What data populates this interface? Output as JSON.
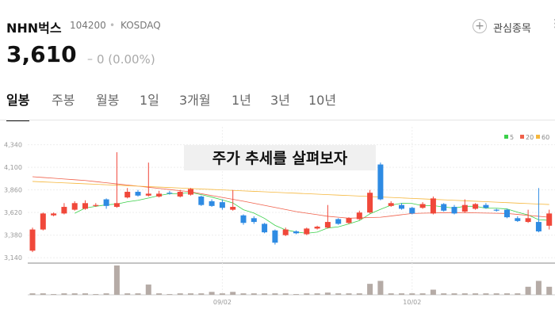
{
  "header": {
    "name": "NHN벅스",
    "code": "104200",
    "market": "KOSDAQ",
    "watch_label": "관심종목",
    "price": "3,610",
    "change": "0 (0.00%)"
  },
  "tabs": [
    "일봉",
    "주봉",
    "월봉",
    "1일",
    "3개월",
    "1년",
    "3년",
    "10년"
  ],
  "active_tab": 0,
  "chart_data": {
    "type": "candlestick",
    "annotation": "주가 추세를 살펴보자",
    "categories": [
      null,
      null,
      null,
      null,
      null,
      null,
      null,
      null,
      null,
      null,
      null,
      null,
      null,
      null,
      null,
      null,
      null,
      null,
      "09/02",
      null,
      null,
      null,
      null,
      null,
      null,
      null,
      null,
      null,
      null,
      null,
      null,
      null,
      null,
      null,
      null,
      null,
      "10/02",
      null,
      null,
      null,
      null,
      null,
      null,
      null,
      null,
      null,
      null,
      null,
      null,
      null
    ],
    "open": [
      3215,
      3440,
      3590,
      3610,
      3650,
      3660,
      3690,
      3760,
      3680,
      3780,
      3840,
      3800,
      3790,
      3830,
      3790,
      3810,
      3790,
      3740,
      3730,
      3650,
      3590,
      3560,
      3500,
      3430,
      3380,
      3420,
      3390,
      3450,
      3460,
      3550,
      3510,
      3550,
      3620,
      4130,
      3690,
      3700,
      3670,
      3670,
      3610,
      3710,
      3680,
      3630,
      3660,
      3700,
      3650,
      3650,
      3560,
      3520,
      3520,
      3480
    ],
    "high": [
      3460,
      3620,
      3620,
      3720,
      3740,
      3750,
      3720,
      3770,
      4260,
      3880,
      3860,
      4150,
      3850,
      3850,
      3860,
      3880,
      3800,
      3760,
      3760,
      3860,
      3600,
      3580,
      3510,
      3440,
      3460,
      3430,
      3460,
      3480,
      3700,
      3560,
      3570,
      3640,
      3860,
      4150,
      3740,
      3720,
      3680,
      3730,
      3790,
      3720,
      3700,
      3760,
      3720,
      3720,
      3660,
      3660,
      3580,
      3650,
      3880,
      3650
    ],
    "low": [
      3200,
      3430,
      3580,
      3600,
      3640,
      3650,
      3680,
      3660,
      3670,
      3770,
      3790,
      3790,
      3780,
      3810,
      3780,
      3800,
      3690,
      3680,
      3650,
      3640,
      3490,
      3500,
      3400,
      3280,
      3370,
      3390,
      3380,
      3440,
      3450,
      3490,
      3500,
      3540,
      3610,
      3750,
      3680,
      3650,
      3600,
      3660,
      3600,
      3630,
      3600,
      3620,
      3650,
      3660,
      3630,
      3560,
      3520,
      3510,
      3410,
      3440
    ],
    "close": [
      3440,
      3610,
      3610,
      3680,
      3720,
      3720,
      3700,
      3690,
      3720,
      3840,
      3800,
      3820,
      3820,
      3820,
      3840,
      3870,
      3700,
      3690,
      3670,
      3680,
      3510,
      3520,
      3410,
      3300,
      3440,
      3400,
      3450,
      3470,
      3520,
      3500,
      3560,
      3620,
      3830,
      3760,
      3720,
      3660,
      3610,
      3710,
      3770,
      3640,
      3610,
      3700,
      3710,
      3670,
      3640,
      3570,
      3530,
      3560,
      3420,
      3610
    ],
    "up_color": "#f0483a",
    "down_color": "#2e8be3",
    "ylim": [
      3100,
      4530
    ],
    "yticks": [
      {
        "value": 3140,
        "label": "3,140"
      },
      {
        "value": 3380,
        "label": "3,380"
      },
      {
        "value": 3620,
        "label": "3,620"
      },
      {
        "value": 3860,
        "label": "3,860"
      },
      {
        "value": 4100,
        "label": "4,100"
      },
      {
        "value": 4340,
        "label": "4,340"
      }
    ],
    "volume": [
      2,
      2,
      1,
      2,
      2,
      2,
      1,
      2,
      40,
      2,
      2,
      14,
      2,
      1,
      2,
      2,
      2,
      4,
      2,
      4,
      2,
      2,
      2,
      2,
      2,
      1,
      2,
      2,
      3,
      2,
      2,
      2,
      15,
      19,
      2,
      2,
      2,
      2,
      7,
      2,
      2,
      2,
      2,
      2,
      2,
      2,
      2,
      11,
      19,
      11
    ],
    "volume_ylim": [
      0,
      40
    ],
    "volume_color": "#b5aba6",
    "ma": [
      {
        "name": "5",
        "color": "#3bd04a",
        "values": [
          null,
          null,
          null,
          null,
          3612,
          3668,
          3686,
          3702,
          3710,
          3734,
          3750,
          3774,
          3800,
          3820,
          3820,
          3834,
          3810,
          3784,
          3754,
          3722,
          3650,
          3614,
          3558,
          3484,
          3436,
          3414,
          3400,
          3412,
          3456,
          3468,
          3500,
          3534,
          3606,
          3654,
          3698,
          3718,
          3716,
          3692,
          3694,
          3678,
          3668,
          3686,
          3686,
          3666,
          3666,
          3658,
          3624,
          3594,
          3544,
          3538
        ]
      },
      {
        "name": "20",
        "color": "#f0604a",
        "values": [
          4000,
          3992,
          3984,
          3976,
          3968,
          3960,
          3948,
          3936,
          3924,
          3912,
          3900,
          3888,
          3876,
          3864,
          3852,
          3840,
          3820,
          3800,
          3780,
          3760,
          3740,
          3718,
          3696,
          3674,
          3652,
          3630,
          3613,
          3597,
          3580,
          3570,
          3560,
          3563,
          3567,
          3570,
          3583,
          3597,
          3610,
          3613,
          3615,
          3618,
          3620,
          3618,
          3616,
          3614,
          3612,
          3610,
          3600,
          3590,
          3580,
          3570
        ]
      },
      {
        "name": "60",
        "color": "#f5b73c",
        "values": [
          3950,
          3945,
          3940,
          3935,
          3930,
          3925,
          3920,
          3915,
          3910,
          3905,
          3900,
          3895,
          3890,
          3885,
          3880,
          3875,
          3870,
          3865,
          3860,
          3855,
          3850,
          3845,
          3840,
          3835,
          3830,
          3825,
          3820,
          3815,
          3810,
          3805,
          3800,
          3795,
          3790,
          3785,
          3780,
          3775,
          3770,
          3765,
          3760,
          3755,
          3750,
          3745,
          3740,
          3735,
          3730,
          3725,
          3720,
          3715,
          3710,
          3705
        ]
      }
    ]
  }
}
